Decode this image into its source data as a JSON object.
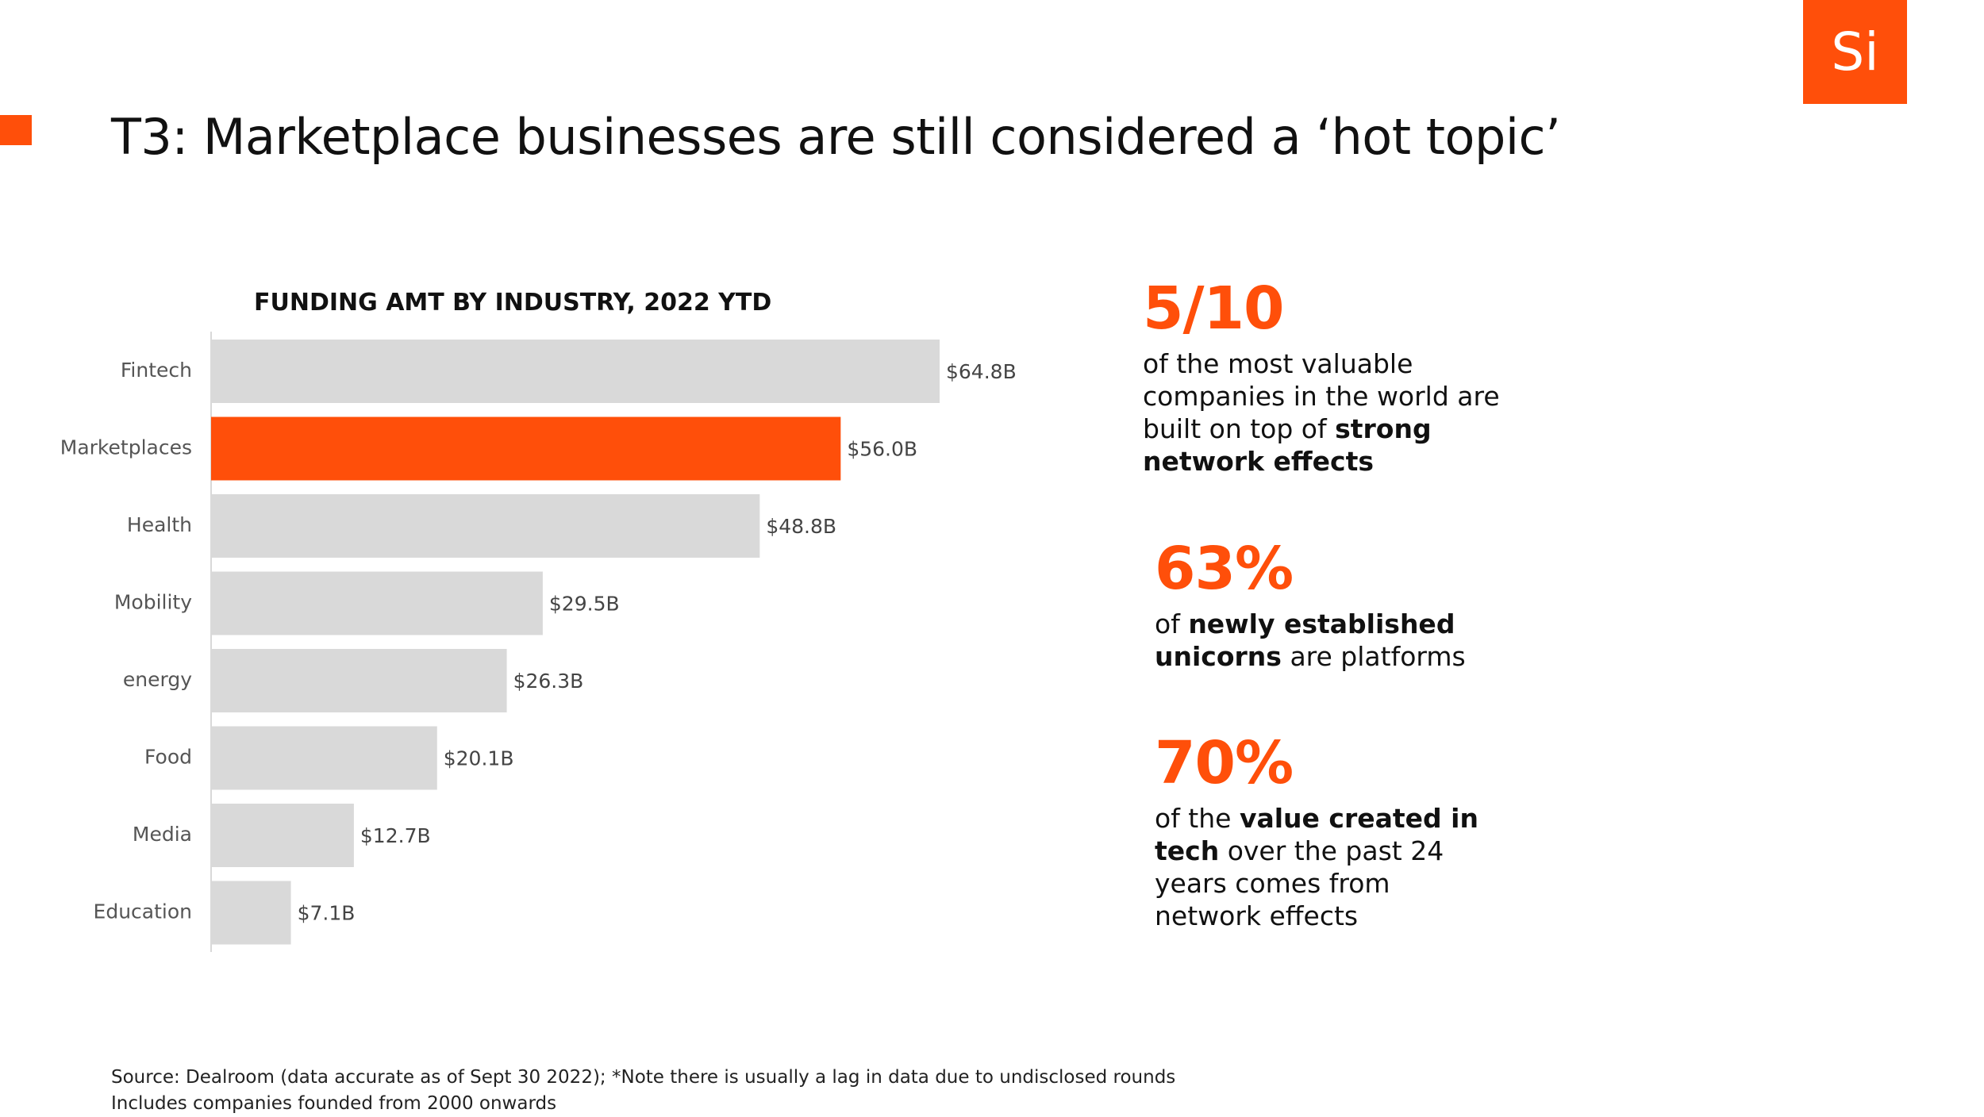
{
  "logo": {
    "text": "Si"
  },
  "header": {
    "title": "T3: Marketplace businesses are still considered a ‘hot topic’"
  },
  "colors": {
    "accent": "#FF4F0A",
    "bar": "#D9D9D9",
    "highlight": "#FF4F0A"
  },
  "chart_data": {
    "type": "bar",
    "orientation": "horizontal",
    "title": "FUNDING AMT BY INDUSTRY, 2022 YTD",
    "categories": [
      "Fintech",
      "Marketplaces",
      "Health",
      "Mobility",
      "energy",
      "Food",
      "Media",
      "Education"
    ],
    "values": [
      64.8,
      56.0,
      48.8,
      29.5,
      26.3,
      20.1,
      12.7,
      7.1
    ],
    "value_labels": [
      "$64.8B",
      "$56.0B",
      "$48.8B",
      "$29.5B",
      "$26.3B",
      "$20.1B",
      "$12.7B",
      "$7.1B"
    ],
    "unit": "$B",
    "highlight_category": "Marketplaces",
    "xlabel": "",
    "ylabel": "",
    "xlim": [
      0,
      64.8
    ],
    "grid": false,
    "legend": "none"
  },
  "stats": [
    {
      "number": "5/10",
      "text_1": "of the most valuable companies in the world are built on top of ",
      "bold_1": "strong network effects"
    },
    {
      "number": "63%",
      "text_1": "of ",
      "bold_1": "newly established unicorns",
      "text_2": " are platforms"
    },
    {
      "number": "70%",
      "text_1": "of the ",
      "bold_1": "value created in tech",
      "text_2": " over the past 24 years comes from network effects"
    }
  ],
  "footer": {
    "source_line_1": "Source: Dealroom (data accurate as of Sept 30 2022); *Note there is usually a lag in data due to undisclosed rounds",
    "source_line_2": "Includes companies founded from 2000 onwards"
  }
}
